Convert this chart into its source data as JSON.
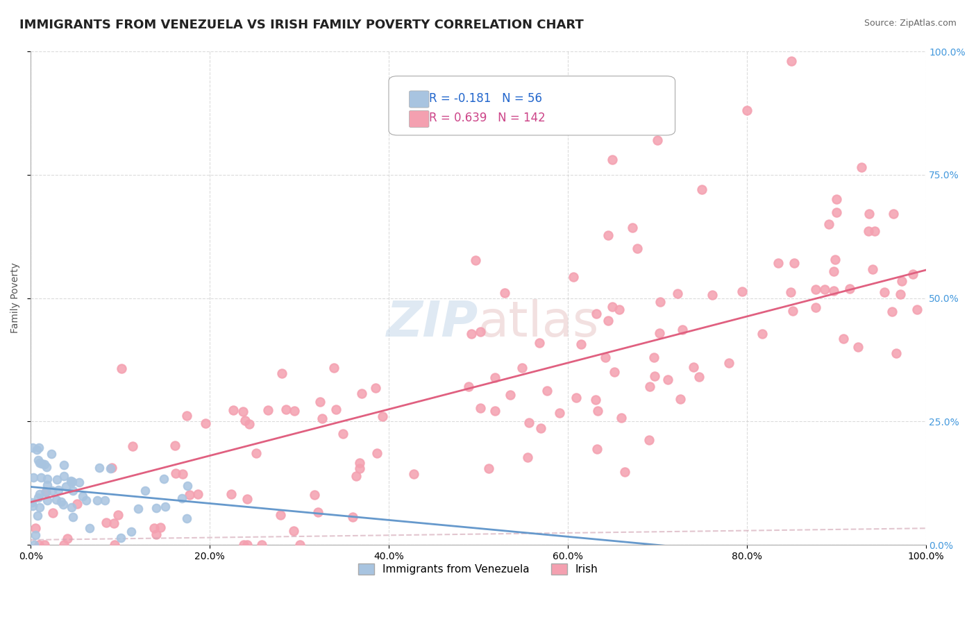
{
  "title": "IMMIGRANTS FROM VENEZUELA VS IRISH FAMILY POVERTY CORRELATION CHART",
  "source_text": "Source: ZipAtlas.com",
  "xlabel": "",
  "ylabel": "Family Poverty",
  "legend_label1": "Immigrants from Venezuela",
  "legend_label2": "Irish",
  "R1": -0.181,
  "N1": 56,
  "R2": 0.639,
  "N2": 142,
  "color1": "#a8c4e0",
  "color2": "#f4a0b0",
  "trend1_color": "#6699cc",
  "trend2_color": "#e06080",
  "trend2_dash_color": "#d0a0b0",
  "background_color": "#ffffff",
  "grid_color": "#cccccc",
  "watermark": "ZIPatlas",
  "watermark_color_zip": "#c8d8e8",
  "watermark_color_atlas": "#d8c8c8",
  "xlim": [
    0.0,
    1.0
  ],
  "ylim": [
    0.0,
    1.0
  ],
  "xtick_labels": [
    "0.0%",
    "20.0%",
    "40.0%",
    "60.0%",
    "80.0%",
    "100.0%"
  ],
  "ytick_labels_right": [
    "0.0%",
    "25.0%",
    "50.0%",
    "75.0%",
    "100.0%"
  ],
  "ytick_positions_right": [
    0.0,
    0.25,
    0.5,
    0.75,
    1.0
  ],
  "title_fontsize": 13,
  "axis_fontsize": 10,
  "legend_fontsize": 12
}
